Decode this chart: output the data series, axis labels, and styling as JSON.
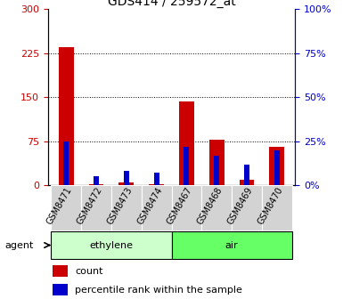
{
  "title": "GDS414 / 259572_at",
  "samples": [
    "GSM8471",
    "GSM8472",
    "GSM8473",
    "GSM8474",
    "GSM8467",
    "GSM8468",
    "GSM8469",
    "GSM8470"
  ],
  "counts": [
    235,
    2,
    5,
    2,
    143,
    78,
    10,
    65
  ],
  "percentiles": [
    25,
    5,
    8,
    7,
    22,
    17,
    12,
    20
  ],
  "ylim_left": [
    0,
    300
  ],
  "ylim_right": [
    0,
    100
  ],
  "yticks_left": [
    0,
    75,
    150,
    225,
    300
  ],
  "yticks_right": [
    0,
    25,
    50,
    75,
    100
  ],
  "ytick_labels_left": [
    "0",
    "75",
    "150",
    "225",
    "300"
  ],
  "ytick_labels_right": [
    "0%",
    "25%",
    "50%",
    "75%",
    "100%"
  ],
  "groups": [
    {
      "label": "ethylene",
      "start": 0,
      "end": 4,
      "color": "#ccffcc"
    },
    {
      "label": "air",
      "start": 4,
      "end": 8,
      "color": "#66ff66"
    }
  ],
  "count_color": "#cc0000",
  "percentile_color": "#0000cc",
  "agent_label": "agent",
  "legend_count": "count",
  "legend_percentile": "percentile rank within the sample",
  "grid_color": "black",
  "grid_linestyle": ":",
  "plot_bg_color": "#ffffff",
  "label_bg_color": "#d3d3d3"
}
